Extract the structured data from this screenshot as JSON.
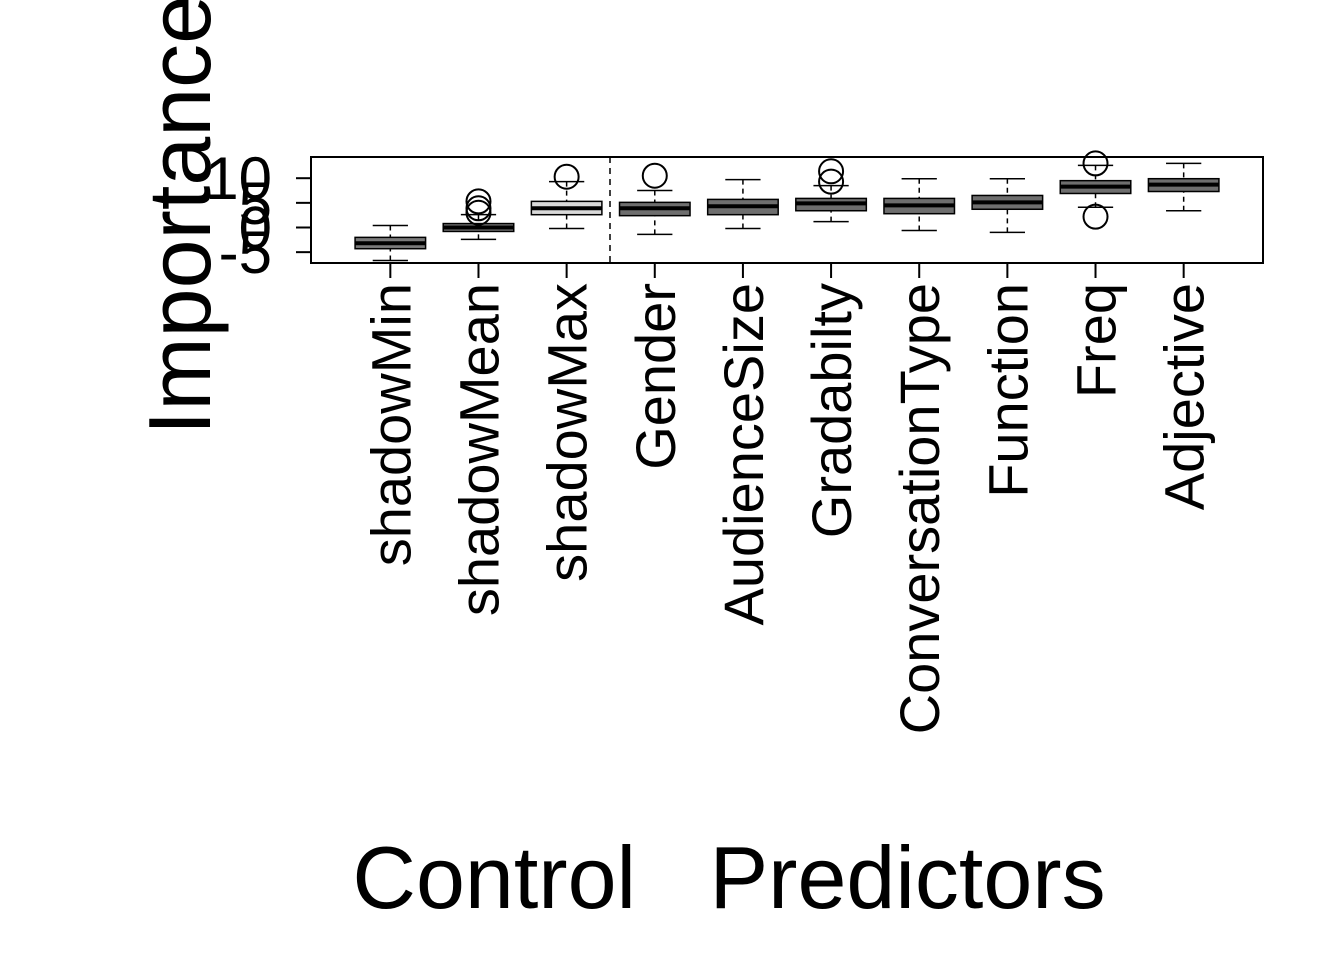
{
  "chart_data": {
    "type": "box",
    "xlabel": "Control   Predictors",
    "ylabel": "Importance",
    "categories": [
      "shadowMin",
      "shadowMean",
      "shadowMax",
      "Gender",
      "AudienceSize",
      "Gradabilty",
      "ConversationType",
      "Function",
      "Freq",
      "Adjective"
    ],
    "boxes": [
      {
        "whislo": -6.7,
        "q1": -4.3,
        "med": -3.2,
        "q3": -2.0,
        "whishi": 0.4,
        "fliers": []
      },
      {
        "whislo": -2.4,
        "q1": -0.8,
        "med": 0,
        "q3": 0.8,
        "whishi": 2.6,
        "fliers": [
          5.3,
          3.9,
          3.0
        ]
      },
      {
        "whislo": -0.2,
        "q1": 2.6,
        "med": 3.9,
        "q3": 5.3,
        "whishi": 9.3,
        "fliers": [
          10.3
        ]
      },
      {
        "whislo": -1.4,
        "q1": 2.4,
        "med": 3.9,
        "q3": 5.1,
        "whishi": 7.5,
        "fliers": [
          10.5
        ]
      },
      {
        "whislo": -0.2,
        "q1": 2.6,
        "med": 4.3,
        "q3": 5.7,
        "whishi": 9.7,
        "fliers": []
      },
      {
        "whislo": 1.2,
        "q1": 3.4,
        "med": 4.9,
        "q3": 5.9,
        "whishi": 8.5,
        "fliers": [
          11.4,
          9.3
        ]
      },
      {
        "whislo": -0.6,
        "q1": 2.8,
        "med": 4.5,
        "q3": 5.9,
        "whishi": 9.9,
        "fliers": []
      },
      {
        "whislo": -1.0,
        "q1": 3.7,
        "med": 5.1,
        "q3": 6.5,
        "whishi": 9.9,
        "fliers": []
      },
      {
        "whislo": 4.1,
        "q1": 6.9,
        "med": 8.3,
        "q3": 9.5,
        "whishi": 12.6,
        "fliers": [
          13.0,
          2.2
        ]
      },
      {
        "whislo": 3.4,
        "q1": 7.3,
        "med": 8.7,
        "q3": 9.9,
        "whishi": 13.0,
        "fliers": []
      }
    ],
    "colors": [
      "#7a7a7a",
      "#7a7a7a",
      "#d9d9d9",
      "#6e6e6e",
      "#6e6e6e",
      "#6e6e6e",
      "#6e6e6e",
      "#6e6e6e",
      "#6e6e6e",
      "#6e6e6e"
    ],
    "ylim": [
      -7.2,
      14.3
    ],
    "yticks": [
      -5,
      0,
      5,
      10
    ]
  }
}
